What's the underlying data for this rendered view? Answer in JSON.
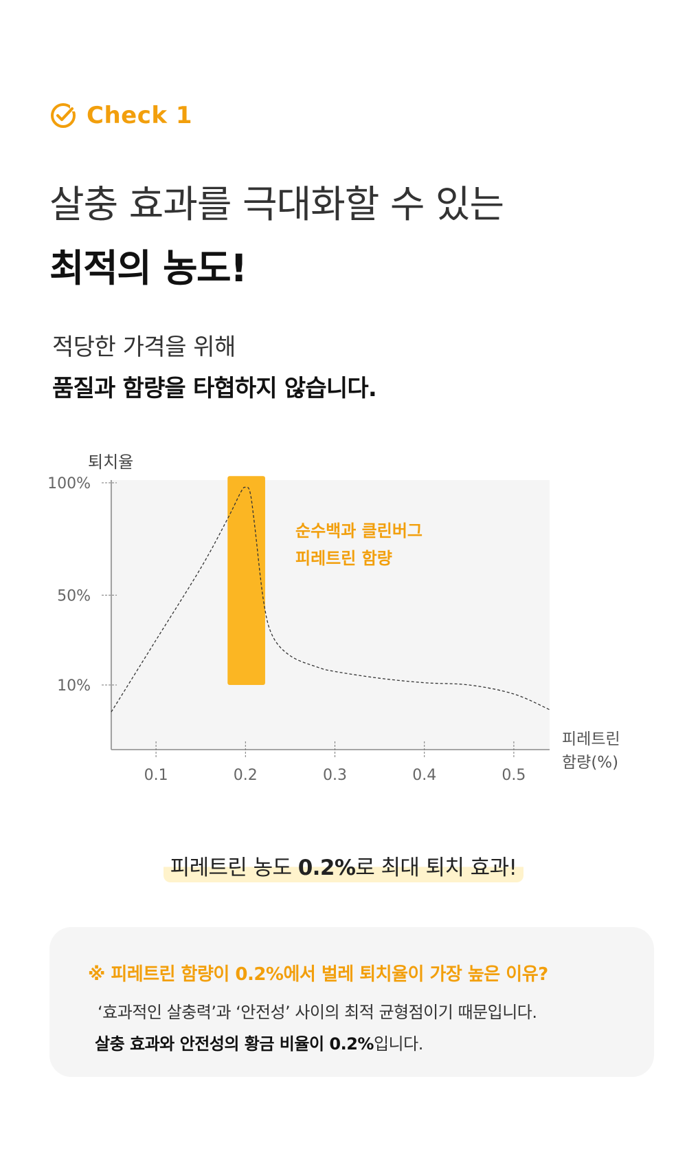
{
  "header": {
    "check_label": "Check 1",
    "title_line1": "살충 효과를 극대화할 수 있는",
    "title_line2": "최적의 농도!",
    "subtitle_line1": "적당한 가격을 위해",
    "subtitle_line2": "품질과 함량을 타협하지 않습니다."
  },
  "colors": {
    "accent": "#f29f0c",
    "bar": "#fbb623",
    "plot_bg": "#f5f5f5",
    "highlight_bg": "#fff3cc",
    "curve": "#333333"
  },
  "chart_data": {
    "type": "line",
    "title": "",
    "ylabel": "퇴치율",
    "xlabel_line1": "피레트린",
    "xlabel_line2": "함량(%)",
    "x_ticks": [
      0.1,
      0.2,
      0.3,
      0.4,
      0.5
    ],
    "x_tick_labels": [
      "0.1",
      "0.2",
      "0.3",
      "0.4",
      "0.5"
    ],
    "y_ticks": [
      100,
      50,
      10
    ],
    "y_tick_labels": [
      "100%",
      "50%",
      "10%"
    ],
    "xlim": [
      0.05,
      0.54
    ],
    "series": [
      {
        "x": [
          0.05,
          0.1,
          0.15,
          0.18,
          0.195,
          0.2,
          0.205,
          0.21,
          0.22,
          0.23,
          0.25,
          0.28,
          0.3,
          0.35,
          0.4,
          0.45,
          0.5,
          0.54
        ],
        "y": [
          -2,
          30,
          62,
          84,
          96,
          98,
          96,
          82,
          48,
          32,
          23,
          18,
          16,
          13,
          11,
          10,
          6,
          -1
        ]
      }
    ],
    "highlight_band": {
      "x_start": 0.18,
      "x_end": 0.222,
      "y_start": 10,
      "y_end": 103
    },
    "annotation_line1": "순수백과 클린버그",
    "annotation_line2": "피레트린 함량"
  },
  "highlight": {
    "text_before": "피레트린 농도 ",
    "text_bold": "0.2%",
    "text_after": "로 최대 퇴치 효과!"
  },
  "note": {
    "title": "※ 피레트린 함량이 0.2%에서 벌레 퇴치율이 가장 높은 이유?",
    "line1": "‘효과적인 살충력’과 ‘안전성’ 사이의 최적 균형점이기 때문입니다.",
    "line2_bold": "살충 효과와 안전성의 황금 비율이 0.2%",
    "line2_rest": "입니다."
  }
}
